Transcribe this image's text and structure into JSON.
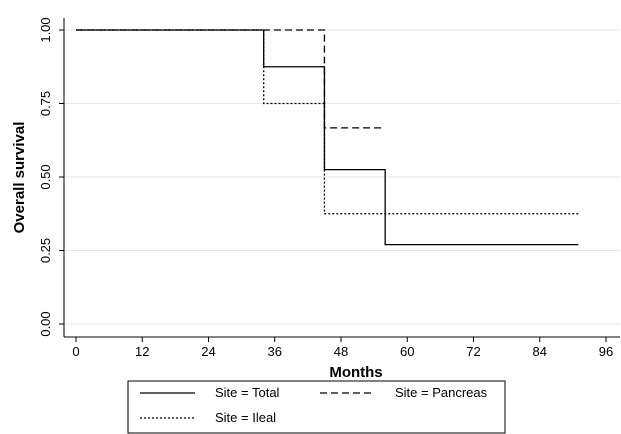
{
  "chart_data": {
    "type": "line",
    "step": true,
    "title": "",
    "xlabel": "Months",
    "ylabel": "Overall survival",
    "xlim": [
      0,
      96
    ],
    "ylim": [
      0,
      1
    ],
    "xticks": [
      "0",
      "12",
      "24",
      "36",
      "48",
      "60",
      "72",
      "84",
      "96"
    ],
    "xtick_values": [
      0,
      12,
      24,
      36,
      48,
      60,
      72,
      84,
      96
    ],
    "yticks": [
      "0.00",
      "0.25",
      "0.50",
      "0.75",
      "1.00"
    ],
    "ytick_values": [
      0,
      0.25,
      0.5,
      0.75,
      1.0
    ],
    "grid": "horizontal",
    "legend_position": "bottom",
    "series": [
      {
        "name": "Site = Total",
        "style": "solid",
        "color": "#000000",
        "x": [
          0,
          34,
          34,
          45,
          45,
          56,
          56,
          91
        ],
        "y": [
          1.0,
          1.0,
          0.875,
          0.875,
          0.525,
          0.525,
          0.27,
          0.27
        ]
      },
      {
        "name": "Site = Pancreas",
        "style": "dashed",
        "color": "#000000",
        "x": [
          0,
          45,
          45,
          56
        ],
        "y": [
          1.0,
          1.0,
          0.667,
          0.667
        ]
      },
      {
        "name": "Site = Ileal",
        "style": "dotted",
        "color": "#000000",
        "x": [
          0,
          34,
          34,
          45,
          45,
          91
        ],
        "y": [
          1.0,
          1.0,
          0.75,
          0.75,
          0.375,
          0.375
        ]
      }
    ]
  }
}
